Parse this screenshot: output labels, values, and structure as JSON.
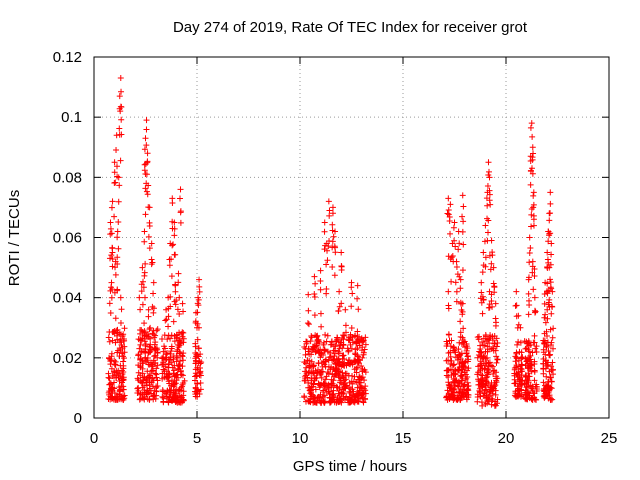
{
  "chart_data": {
    "type": "scatter",
    "title": "Day 274 of 2019, Rate Of TEC Index for receiver grot",
    "xlabel": "GPS time / hours",
    "ylabel": "ROTI / TECUs",
    "xlim": [
      0,
      25
    ],
    "ylim": [
      0,
      0.12
    ],
    "xticks": [
      0,
      5,
      10,
      15,
      20,
      25
    ],
    "xtick_labels": [
      "0",
      "5",
      "10",
      "15",
      "20",
      "25"
    ],
    "yticks": [
      0,
      0.02,
      0.04,
      0.06,
      0.08,
      0.1,
      0.12
    ],
    "ytick_labels": [
      "0",
      "0.02",
      "0.04",
      "0.06",
      "0.08",
      "0.1",
      "0.12"
    ],
    "grid": true,
    "marker": "+",
    "color": "#ff0000",
    "clusters": [
      {
        "x_range": [
          0.7,
          1.5
        ],
        "y_range": [
          0.006,
          0.03
        ],
        "peak_points": [
          [
            1.3,
            0.113
          ],
          [
            1.25,
            0.107
          ],
          [
            1.1,
            0.094
          ],
          [
            1.0,
            0.085
          ],
          [
            0.8,
            0.065
          ],
          [
            0.9,
            0.072
          ],
          [
            1.2,
            0.08
          ],
          [
            1.15,
            0.062
          ],
          [
            1.05,
            0.052
          ],
          [
            0.85,
            0.045
          ],
          [
            1.3,
            0.04
          ]
        ]
      },
      {
        "x_range": [
          2.1,
          3.1
        ],
        "y_range": [
          0.006,
          0.03
        ],
        "peak_points": [
          [
            2.55,
            0.099
          ],
          [
            2.5,
            0.093
          ],
          [
            2.6,
            0.088
          ],
          [
            2.7,
            0.07
          ],
          [
            2.45,
            0.062
          ],
          [
            2.8,
            0.058
          ],
          [
            2.35,
            0.05
          ],
          [
            2.9,
            0.045
          ],
          [
            2.2,
            0.04
          ],
          [
            2.65,
            0.036
          ]
        ]
      },
      {
        "x_range": [
          3.3,
          4.4
        ],
        "y_range": [
          0.005,
          0.028
        ],
        "peak_points": [
          [
            4.2,
            0.076
          ],
          [
            3.8,
            0.073
          ],
          [
            3.9,
            0.065
          ],
          [
            3.7,
            0.058
          ],
          [
            4.1,
            0.048
          ],
          [
            3.95,
            0.044
          ],
          [
            3.6,
            0.04
          ],
          [
            4.3,
            0.038
          ],
          [
            3.5,
            0.036
          ]
        ]
      },
      {
        "x_range": [
          4.9,
          5.2
        ],
        "y_range": [
          0.007,
          0.024
        ],
        "peak_points": [
          [
            5.1,
            0.046
          ],
          [
            5.05,
            0.04
          ],
          [
            4.95,
            0.035
          ],
          [
            5.0,
            0.03
          ]
        ]
      },
      {
        "x_range": [
          10.2,
          13.2
        ],
        "y_range": [
          0.005,
          0.028
        ],
        "peak_points": [
          [
            11.4,
            0.072
          ],
          [
            11.6,
            0.07
          ],
          [
            11.2,
            0.065
          ],
          [
            11.7,
            0.062
          ],
          [
            11.3,
            0.058
          ],
          [
            12.0,
            0.055
          ],
          [
            10.7,
            0.047
          ],
          [
            11.0,
            0.049
          ],
          [
            12.5,
            0.045
          ],
          [
            12.8,
            0.044
          ],
          [
            10.4,
            0.041
          ],
          [
            11.9,
            0.042
          ],
          [
            12.2,
            0.036
          ]
        ]
      },
      {
        "x_range": [
          17.1,
          18.2
        ],
        "y_range": [
          0.006,
          0.026
        ],
        "peak_points": [
          [
            17.9,
            0.074
          ],
          [
            17.2,
            0.073
          ],
          [
            17.3,
            0.071
          ],
          [
            17.5,
            0.065
          ],
          [
            17.7,
            0.062
          ],
          [
            17.4,
            0.058
          ],
          [
            17.6,
            0.052
          ],
          [
            17.8,
            0.046
          ],
          [
            17.2,
            0.042
          ],
          [
            17.9,
            0.038
          ]
        ]
      },
      {
        "x_range": [
          18.6,
          19.6
        ],
        "y_range": [
          0.004,
          0.028
        ],
        "peak_points": [
          [
            19.15,
            0.085
          ],
          [
            19.2,
            0.08
          ],
          [
            19.1,
            0.075
          ],
          [
            19.0,
            0.064
          ],
          [
            19.3,
            0.059
          ],
          [
            18.9,
            0.055
          ],
          [
            19.4,
            0.05
          ],
          [
            18.8,
            0.045
          ],
          [
            19.2,
            0.042
          ],
          [
            19.5,
            0.038
          ]
        ]
      },
      {
        "x_range": [
          20.4,
          20.8
        ],
        "y_range": [
          0.007,
          0.022
        ],
        "peak_points": [
          [
            20.5,
            0.042
          ],
          [
            20.6,
            0.034
          ],
          [
            20.7,
            0.03
          ]
        ]
      },
      {
        "x_range": [
          20.9,
          21.5
        ],
        "y_range": [
          0.006,
          0.026
        ],
        "peak_points": [
          [
            21.25,
            0.098
          ],
          [
            21.3,
            0.09
          ],
          [
            21.2,
            0.087
          ],
          [
            21.35,
            0.075
          ],
          [
            21.15,
            0.06
          ],
          [
            21.3,
            0.052
          ],
          [
            21.1,
            0.046
          ],
          [
            21.4,
            0.04
          ]
        ]
      },
      {
        "x_range": [
          21.8,
          22.3
        ],
        "y_range": [
          0.006,
          0.026
        ],
        "peak_points": [
          [
            22.15,
            0.075
          ],
          [
            22.1,
            0.068
          ],
          [
            22.05,
            0.062
          ],
          [
            22.2,
            0.058
          ],
          [
            22.0,
            0.055
          ],
          [
            22.1,
            0.05
          ],
          [
            21.9,
            0.045
          ],
          [
            22.25,
            0.042
          ],
          [
            22.0,
            0.036
          ]
        ]
      }
    ]
  }
}
